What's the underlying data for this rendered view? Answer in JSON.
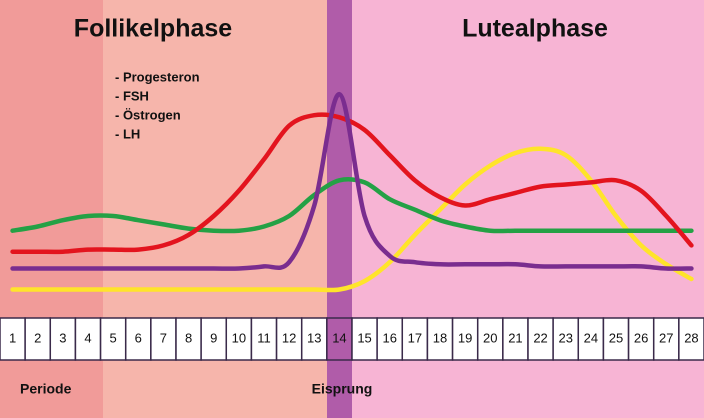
{
  "chart_data": {
    "type": "line",
    "categories": [
      "1",
      "2",
      "3",
      "4",
      "5",
      "6",
      "7",
      "8",
      "9",
      "10",
      "11",
      "12",
      "13",
      "14",
      "15",
      "16",
      "17",
      "18",
      "19",
      "20",
      "21",
      "22",
      "23",
      "24",
      "25",
      "26",
      "27",
      "28"
    ],
    "ylim": [
      0,
      100
    ],
    "series": [
      {
        "name": "- Progesteron",
        "color": "#ffe42a",
        "values": [
          5,
          5,
          5,
          5,
          5,
          5,
          5,
          5,
          5,
          5,
          5,
          5,
          5,
          5,
          9,
          18,
          31,
          43,
          55,
          64,
          70,
          72,
          69,
          57,
          40,
          26,
          17,
          10
        ]
      },
      {
        "name": "- FSH",
        "color": "#24a145",
        "values": [
          33,
          35,
          38,
          40,
          40,
          38,
          36,
          34,
          33,
          33,
          35,
          40,
          50,
          57,
          56,
          48,
          43,
          38,
          35,
          33,
          33,
          33,
          33,
          33,
          33,
          33,
          33,
          33
        ]
      },
      {
        "name": "- Östrogen",
        "color": "#e3141e",
        "values": [
          23,
          23,
          23,
          24,
          24,
          24,
          26,
          31,
          40,
          52,
          67,
          83,
          88,
          87,
          81,
          69,
          57,
          49,
          45,
          48,
          51,
          54,
          55,
          56,
          57,
          52,
          40,
          26
        ]
      },
      {
        "name": "- LH",
        "color": "#7a2d8f",
        "values": [
          15,
          15,
          15,
          15,
          15,
          15,
          15,
          15,
          15,
          15,
          16,
          18,
          45,
          98,
          40,
          21,
          18,
          17,
          17,
          17,
          17,
          16,
          16,
          16,
          16,
          16,
          15,
          15
        ]
      }
    ],
    "phases": [
      "Follikelphase",
      "Lutealphase"
    ],
    "annotations": [
      "Periode",
      "Eisprung"
    ]
  }
}
